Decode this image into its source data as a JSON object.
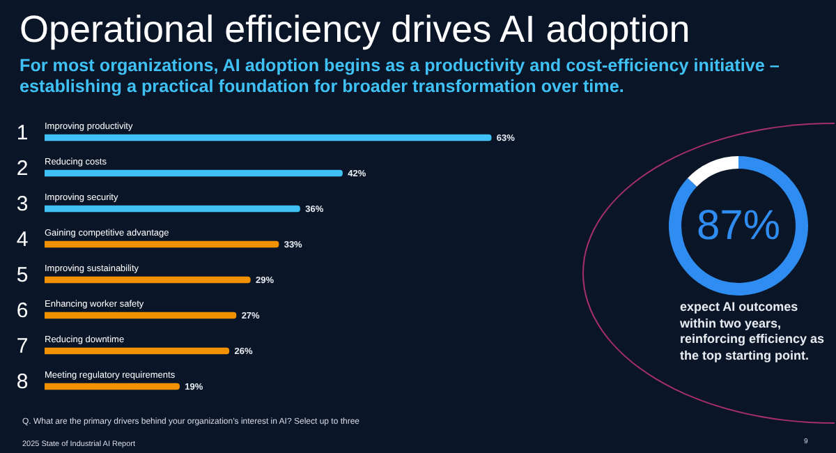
{
  "chart_data": [
    {
      "type": "bar",
      "orientation": "horizontal",
      "title": "Operational efficiency drives AI adoption",
      "subtitle": "For most organizations, AI adoption begins as a productivity and cost-efficiency initiative – establishing a practical foundation for broader transformation over time.",
      "categories": [
        "Improving productivity",
        "Reducing costs",
        "Improving security",
        "Gaining competitive advantage",
        "Improving sustainability",
        "Enhancing worker safety",
        "Reducing downtime",
        "Meeting regulatory requirements"
      ],
      "values": [
        63,
        42,
        36,
        33,
        29,
        27,
        26,
        19
      ],
      "colors": [
        "#3fc1f5",
        "#3fc1f5",
        "#3fc1f5",
        "#f39200",
        "#f39200",
        "#f39200",
        "#f39200",
        "#f39200"
      ],
      "value_labels": [
        "63%",
        "42%",
        "36%",
        "33%",
        "29%",
        "27%",
        "26%",
        "19%"
      ],
      "tick_labels": "y",
      "legend": false,
      "annotations": [
        "1",
        "2",
        "3",
        "4",
        "5",
        "6",
        "7",
        "8",
        "Q. What are the primary drivers behind your organization’s interest in AI? Select up to three",
        "2025 State of Industrial AI Report"
      ]
    },
    {
      "type": "donut",
      "categories": [
        null,
        null
      ],
      "values": [
        87,
        13
      ],
      "colors": [
        "#2f8cf0",
        "#ffffff"
      ],
      "value_labels": [
        "87%",
        null
      ],
      "legend": false,
      "annotations": [
        "expect AI outcomes within two years, reinforcing efficiency as the top starting point.",
        "9"
      ]
    }
  ]
}
